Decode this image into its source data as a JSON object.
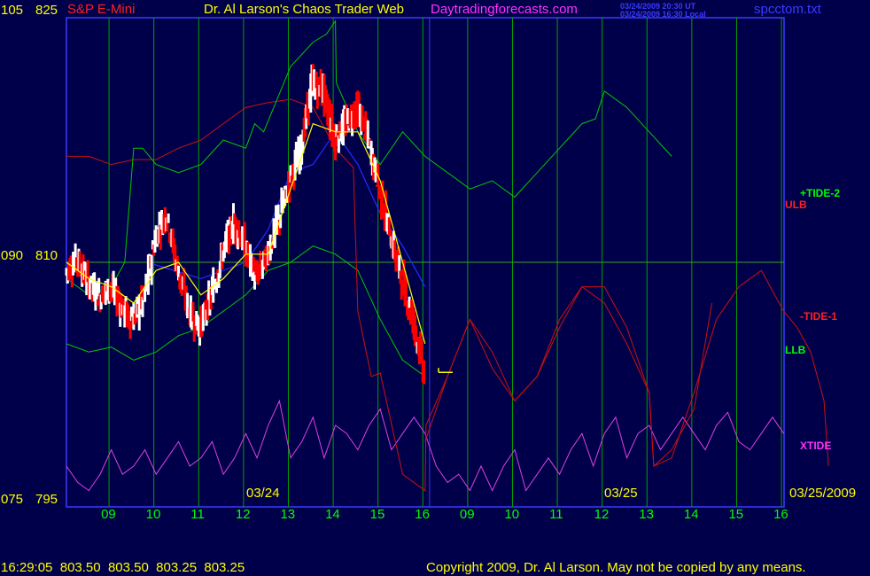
{
  "header": {
    "instrument": "S&P E-Mini",
    "title": "Dr. Al Larson's Chaos Trader Web",
    "website": "Daytradingforecasts.com",
    "ut_time": "03/24/2009 20:30 UT",
    "local_time": "03/24/2009 16:30 Local",
    "filename": "spcctom.txt"
  },
  "footer": {
    "time_ohlc": "16:29:05  803.50  803.50  803.25  803.25",
    "copyright": "Copyright 2009, Dr. Al Larson. May not be copied by any means."
  },
  "colors": {
    "background": "#00004a",
    "frame": "#3a3aff",
    "grid": "#00a000",
    "price_up": "#ffffff",
    "price_down": "#ff0000",
    "ma_yellow": "#ffff00",
    "ma_blue": "#2828ff",
    "tide2": "#00c800",
    "ulb": "#cc1010",
    "tide1": "#cc1010",
    "llb": "#00c800",
    "xtide": "#e040e0",
    "hour_labels": "#00ff00",
    "date_labels": "#ffff00",
    "left_scale": "#ffff00"
  },
  "chart_data": {
    "type": "line",
    "title": "S&P E-Mini",
    "left_scale_outer": [
      "105",
      "090",
      "075"
    ],
    "left_scale_inner": [
      "825",
      "810",
      "795"
    ],
    "ylim": [
      795,
      825
    ],
    "x_hour_labels": [
      "09",
      "10",
      "11",
      "12",
      "13",
      "14",
      "15",
      "16",
      "09",
      "10",
      "11",
      "12",
      "13",
      "14",
      "15",
      "16"
    ],
    "date_labels": [
      "03/24",
      "03/25",
      "03/25/2009"
    ],
    "series_labels": {
      "tide2": "+TIDE-2",
      "ulb": "ULB",
      "tide1": "-TIDE-1",
      "llb": "LLB",
      "xtide": "XTIDE"
    },
    "price_last": 803.25,
    "price_points": [
      [
        0.0,
        809.4
      ],
      [
        0.25,
        810.2
      ],
      [
        0.5,
        808.8
      ],
      [
        0.75,
        807.9
      ],
      [
        1.0,
        808.5
      ],
      [
        1.25,
        807.2
      ],
      [
        1.5,
        806.4
      ],
      [
        1.75,
        807.8
      ],
      [
        2.0,
        811.5
      ],
      [
        2.25,
        813.0
      ],
      [
        2.5,
        809.5
      ],
      [
        2.75,
        807.0
      ],
      [
        3.0,
        806.0
      ],
      [
        3.25,
        808.0
      ],
      [
        3.5,
        810.5
      ],
      [
        3.75,
        812.5
      ],
      [
        4.0,
        811.0
      ],
      [
        4.25,
        809.0
      ],
      [
        4.5,
        810.5
      ],
      [
        4.75,
        812.5
      ],
      [
        5.0,
        815.0
      ],
      [
        5.25,
        817.0
      ],
      [
        5.5,
        821.0
      ],
      [
        5.75,
        820.5
      ],
      [
        6.0,
        817.5
      ],
      [
        6.25,
        818.5
      ],
      [
        6.5,
        819.5
      ],
      [
        6.75,
        817.5
      ],
      [
        7.0,
        814.5
      ],
      [
        7.25,
        811.5
      ],
      [
        7.5,
        809.0
      ],
      [
        7.75,
        806.5
      ],
      [
        8.0,
        803.25
      ]
    ],
    "ma_yellow": [
      [
        0.0,
        810.0
      ],
      [
        0.5,
        809.0
      ],
      [
        1.0,
        808.5
      ],
      [
        1.5,
        807.5
      ],
      [
        2.0,
        809.5
      ],
      [
        2.5,
        810.0
      ],
      [
        3.0,
        808.0
      ],
      [
        3.5,
        809.0
      ],
      [
        4.0,
        810.5
      ],
      [
        4.5,
        810.5
      ],
      [
        5.0,
        814.5
      ],
      [
        5.5,
        818.5
      ],
      [
        6.0,
        818.0
      ],
      [
        6.5,
        818.0
      ],
      [
        7.0,
        815.0
      ],
      [
        7.5,
        810.0
      ],
      [
        8.0,
        805.0
      ]
    ],
    "ma_blue": [
      [
        1.8,
        810.0
      ],
      [
        3.0,
        809.0
      ],
      [
        4.0,
        810.0
      ],
      [
        4.5,
        812.0
      ],
      [
        5.0,
        815.5
      ],
      [
        5.5,
        816.0
      ],
      [
        6.0,
        818.0
      ],
      [
        6.5,
        816.0
      ],
      [
        7.0,
        813.0
      ],
      [
        7.5,
        811.0
      ],
      [
        8.0,
        808.5
      ]
    ],
    "tide2": [
      [
        0.0,
        809.0
      ],
      [
        0.5,
        808.0
      ],
      [
        1.0,
        808.5
      ],
      [
        1.3,
        810.0
      ],
      [
        1.5,
        817.0
      ],
      [
        1.7,
        817.0
      ],
      [
        2.0,
        816.0
      ],
      [
        2.5,
        815.5
      ],
      [
        3.0,
        816.0
      ],
      [
        3.5,
        817.5
      ],
      [
        4.0,
        817.0
      ],
      [
        4.2,
        818.5
      ],
      [
        4.4,
        818.0
      ],
      [
        5.0,
        822.0
      ],
      [
        5.5,
        823.5
      ],
      [
        5.8,
        824.0
      ],
      [
        6.0,
        824.8
      ],
      [
        6.02,
        821.0
      ],
      [
        6.5,
        818.0
      ],
      [
        7.0,
        816.0
      ],
      [
        7.5,
        818.0
      ],
      [
        8.0,
        816.5
      ],
      [
        8.5,
        815.5
      ],
      [
        9.0,
        814.5
      ],
      [
        9.5,
        815.0
      ],
      [
        10.0,
        814.0
      ],
      [
        10.5,
        815.5
      ],
      [
        11.0,
        817.0
      ],
      [
        11.5,
        818.5
      ],
      [
        11.8,
        818.8
      ],
      [
        12.0,
        820.5
      ],
      [
        12.5,
        819.5
      ],
      [
        13.0,
        818.0
      ],
      [
        13.5,
        816.5
      ]
    ],
    "ulb": [
      [
        0.0,
        816.5
      ],
      [
        0.5,
        816.5
      ],
      [
        1.0,
        816.0
      ],
      [
        1.5,
        816.3
      ],
      [
        2.0,
        816.3
      ],
      [
        2.5,
        817.0
      ],
      [
        3.0,
        817.5
      ],
      [
        3.5,
        818.5
      ],
      [
        4.0,
        819.5
      ],
      [
        4.5,
        819.8
      ],
      [
        5.0,
        820.0
      ],
      [
        5.5,
        819.5
      ],
      [
        6.0,
        817.0
      ],
      [
        6.4,
        815.8
      ],
      [
        6.5,
        807.0
      ],
      [
        6.8,
        803.0
      ],
      [
        7.0,
        803.2
      ],
      [
        7.5,
        797.0
      ],
      [
        8.0,
        796.0
      ],
      [
        8.02,
        800.0
      ],
      [
        8.5,
        803.0
      ],
      [
        9.0,
        806.5
      ],
      [
        9.5,
        804.5
      ],
      [
        10.0,
        801.5
      ],
      [
        10.5,
        803.0
      ],
      [
        11.0,
        806.0
      ],
      [
        11.5,
        808.5
      ],
      [
        12.0,
        807.5
      ],
      [
        12.5,
        805.0
      ],
      [
        13.0,
        802.0
      ],
      [
        13.1,
        797.5
      ],
      [
        13.5,
        798.0
      ],
      [
        14.0,
        802.0
      ],
      [
        14.5,
        806.5
      ],
      [
        15.0,
        808.5
      ],
      [
        15.5,
        809.5
      ],
      [
        16.0,
        807.0
      ],
      [
        16.3,
        806.0
      ],
      [
        16.6,
        804.5
      ],
      [
        16.9,
        801.5
      ],
      [
        17.0,
        797.5
      ]
    ],
    "tide1": [
      [
        8.0,
        799.0
      ],
      [
        8.5,
        803.0
      ],
      [
        9.0,
        806.5
      ],
      [
        9.5,
        803.5
      ],
      [
        10.0,
        801.5
      ],
      [
        10.5,
        803.0
      ],
      [
        11.0,
        806.5
      ],
      [
        11.5,
        808.5
      ],
      [
        12.0,
        808.5
      ],
      [
        12.5,
        806.0
      ],
      [
        13.0,
        802.0
      ],
      [
        13.1,
        797.5
      ],
      [
        13.5,
        798.5
      ],
      [
        14.0,
        801.0
      ],
      [
        14.4,
        807.5
      ]
    ],
    "llb": [
      [
        0.0,
        805.0
      ],
      [
        0.5,
        804.5
      ],
      [
        1.0,
        804.8
      ],
      [
        1.5,
        804.0
      ],
      [
        2.0,
        804.5
      ],
      [
        2.5,
        805.5
      ],
      [
        3.0,
        806.0
      ],
      [
        3.5,
        807.0
      ],
      [
        4.0,
        808.0
      ],
      [
        4.5,
        809.5
      ],
      [
        5.0,
        810.0
      ],
      [
        5.5,
        811.0
      ],
      [
        6.0,
        810.5
      ],
      [
        6.5,
        809.5
      ],
      [
        7.0,
        806.5
      ],
      [
        7.5,
        804.0
      ],
      [
        8.0,
        803.0
      ]
    ],
    "xtide": [
      [
        0.0,
        797.5
      ],
      [
        0.25,
        796.5
      ],
      [
        0.5,
        796.0
      ],
      [
        0.75,
        797.0
      ],
      [
        1.0,
        798.5
      ],
      [
        1.25,
        797.0
      ],
      [
        1.5,
        797.5
      ],
      [
        1.75,
        798.5
      ],
      [
        2.0,
        797.0
      ],
      [
        2.25,
        798.0
      ],
      [
        2.5,
        799.0
      ],
      [
        2.75,
        797.5
      ],
      [
        3.0,
        798.0
      ],
      [
        3.25,
        799.0
      ],
      [
        3.5,
        797.0
      ],
      [
        3.75,
        798.0
      ],
      [
        4.0,
        799.5
      ],
      [
        4.25,
        798.0
      ],
      [
        4.5,
        800.0
      ],
      [
        4.75,
        801.5
      ],
      [
        5.0,
        798.0
      ],
      [
        5.25,
        799.0
      ],
      [
        5.5,
        800.5
      ],
      [
        5.75,
        798.0
      ],
      [
        6.0,
        800.0
      ],
      [
        6.25,
        799.5
      ],
      [
        6.5,
        798.5
      ],
      [
        6.75,
        800.0
      ],
      [
        7.0,
        801.0
      ],
      [
        7.25,
        798.5
      ],
      [
        7.5,
        799.5
      ],
      [
        7.75,
        800.5
      ],
      [
        8.0,
        799.5
      ],
      [
        8.25,
        797.5
      ],
      [
        8.5,
        796.5
      ],
      [
        8.75,
        797.0
      ],
      [
        9.0,
        796.0
      ],
      [
        9.25,
        797.5
      ],
      [
        9.5,
        796.0
      ],
      [
        9.75,
        797.5
      ],
      [
        10.0,
        798.5
      ],
      [
        10.25,
        796.0
      ],
      [
        10.5,
        797.0
      ],
      [
        10.75,
        798.0
      ],
      [
        11.0,
        797.0
      ],
      [
        11.25,
        798.5
      ],
      [
        11.5,
        799.5
      ],
      [
        11.75,
        797.5
      ],
      [
        12.0,
        799.5
      ],
      [
        12.25,
        800.5
      ],
      [
        12.5,
        798.0
      ],
      [
        12.75,
        799.5
      ],
      [
        13.0,
        800.0
      ],
      [
        13.25,
        798.5
      ],
      [
        13.5,
        799.5
      ],
      [
        13.75,
        800.5
      ],
      [
        14.0,
        799.5
      ],
      [
        14.25,
        798.5
      ],
      [
        14.5,
        800.0
      ],
      [
        14.75,
        800.8
      ],
      [
        15.0,
        799.0
      ],
      [
        15.25,
        798.5
      ],
      [
        15.5,
        799.5
      ],
      [
        15.75,
        800.5
      ],
      [
        16.0,
        799.5
      ]
    ]
  }
}
